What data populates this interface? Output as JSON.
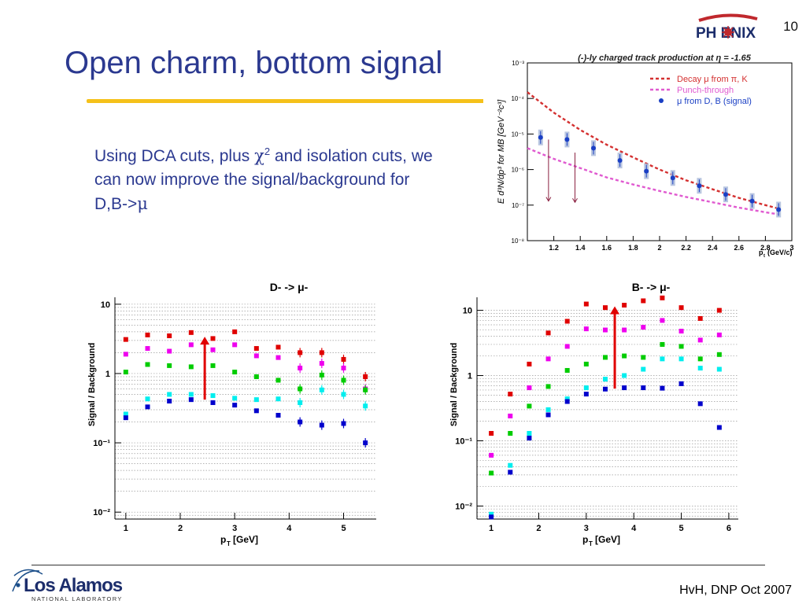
{
  "slide": {
    "title": "Open charm, bottom signal",
    "page_number": "10",
    "bullet_parts": [
      "Using DCA cuts, plus ",
      "χ",
      "2",
      " and isolation cuts, we can now improve the signal/background for D,B->",
      "μ"
    ],
    "footer": "HvH, DNP Oct 2007",
    "phenix_logo_text": "PH   ENIX",
    "lanl_logo": {
      "name": "Los Alamos",
      "sub": "NATIONAL LABORATORY"
    },
    "colors": {
      "title": "#2b3990",
      "rule": "#f5c11a"
    }
  },
  "chart_data": [
    {
      "id": "top",
      "type": "scatter",
      "title": "(-)-ly charged track production at η = -1.65",
      "ylabel": "E d³N/dp³ for MB [GeV⁻²c³]",
      "xlabel": "p",
      "xlabel_sub": "t",
      "xlabel_unit": "(GeV/c)",
      "xlim": [
        1.0,
        3.0
      ],
      "ylim_log10": [
        -8,
        -3
      ],
      "xticks": [
        1.2,
        1.4,
        1.6,
        1.8,
        2.0,
        2.2,
        2.4,
        2.6,
        2.8,
        3.0
      ],
      "xtick_labels": [
        "1.2",
        "1.4",
        "1.6",
        "1.8",
        "2",
        "2.2",
        "2.4",
        "2.6",
        "2.8",
        "3"
      ],
      "yticks_log10": [
        -8,
        -7,
        -6,
        -5,
        -4,
        -3
      ],
      "ytick_labels": [
        "10⁻⁸",
        "10⁻⁷",
        "10⁻⁶",
        "10⁻⁵",
        "10⁻⁴",
        "10⁻³"
      ],
      "legend_position": "top-right",
      "series": [
        {
          "name": "Decay μ from π, K",
          "kind": "curve",
          "color": "#d43030",
          "x": [
            1.0,
            1.2,
            1.4,
            1.6,
            1.8,
            2.0,
            2.2,
            2.4,
            2.6,
            2.8,
            2.9
          ],
          "y": [
            0.00015,
            4e-05,
            1.3e-05,
            5e-06,
            2.2e-06,
            1e-06,
            5e-07,
            2.8e-07,
            1.6e-07,
            1e-07,
            8e-08
          ]
        },
        {
          "name": "Punch-through",
          "kind": "curve",
          "color": "#e05ad0",
          "x": [
            1.0,
            1.2,
            1.4,
            1.6,
            1.8,
            2.0,
            2.2,
            2.4,
            2.6,
            2.8,
            2.9
          ],
          "y": [
            4e-06,
            2e-06,
            1.1e-06,
            6e-07,
            3.8e-07,
            2.5e-07,
            1.7e-07,
            1.2e-07,
            8.5e-08,
            6.3e-08,
            5.5e-08
          ]
        },
        {
          "name": "μ from D, B (signal)",
          "kind": "points",
          "color": "#1a3fc4",
          "x": [
            1.1,
            1.3,
            1.5,
            1.7,
            1.9,
            2.1,
            2.3,
            2.5,
            2.7,
            2.9
          ],
          "y": [
            8e-06,
            7e-06,
            4e-06,
            1.8e-06,
            9e-07,
            5.8e-07,
            3.5e-07,
            2e-07,
            1.3e-07,
            7.5e-08
          ]
        }
      ],
      "arrows": [
        {
          "x": 1.16,
          "y_from": 7e-06,
          "y_to": 1.3e-07
        },
        {
          "x": 1.36,
          "y_from": 3e-06,
          "y_to": 1.2e-07
        }
      ]
    },
    {
      "id": "d",
      "type": "scatter",
      "title": "D- -> μ-",
      "xlabel": "p",
      "xlabel_sub": "T",
      "xlabel_unit": "[GeV]",
      "ylabel": "Signal / Background",
      "xlim": [
        0.8,
        5.6
      ],
      "ylim_log10": [
        -2.1,
        1.1
      ],
      "xticks": [
        1,
        2,
        3,
        4,
        5
      ],
      "yticks_log10": [
        -2,
        -1,
        0,
        1
      ],
      "ytick_labels": [
        "10⁻²",
        "10⁻¹",
        "1",
        "10"
      ],
      "x": [
        1.0,
        1.4,
        1.8,
        2.2,
        2.6,
        3.0,
        3.4,
        3.8,
        4.2,
        4.6,
        5.0,
        5.4
      ],
      "series": [
        {
          "color": "#e00000",
          "values": [
            3.1,
            3.6,
            3.5,
            3.9,
            3.2,
            4.0,
            2.3,
            2.4,
            2.0,
            2.0,
            1.6,
            0.9
          ]
        },
        {
          "color": "#ee00ee",
          "values": [
            1.9,
            2.3,
            2.1,
            2.6,
            2.2,
            2.6,
            1.8,
            1.7,
            1.2,
            1.4,
            1.2,
            0.6
          ]
        },
        {
          "color": "#00cc00",
          "values": [
            1.05,
            1.35,
            1.3,
            1.25,
            1.3,
            1.05,
            0.9,
            0.8,
            0.6,
            0.95,
            0.8,
            0.58
          ]
        },
        {
          "color": "#00eeee",
          "values": [
            0.26,
            0.43,
            0.5,
            0.5,
            0.48,
            0.44,
            0.42,
            0.43,
            0.38,
            0.58,
            0.5,
            0.34
          ]
        },
        {
          "color": "#0000cc",
          "values": [
            0.23,
            0.33,
            0.4,
            0.42,
            0.38,
            0.35,
            0.29,
            0.25,
            0.2,
            0.18,
            0.19,
            0.1
          ]
        }
      ],
      "arrow": {
        "x": 2.45,
        "from": 0.42,
        "to": 3.4,
        "color": "#e00000"
      }
    },
    {
      "id": "b",
      "type": "scatter",
      "title": "B- -> μ-",
      "xlabel": "p",
      "xlabel_sub": "T",
      "xlabel_unit": "[GeV]",
      "ylabel": "Signal / Background",
      "xlim": [
        0.7,
        6.2
      ],
      "ylim_log10": [
        -2.2,
        1.2
      ],
      "xticks": [
        1,
        2,
        3,
        4,
        5,
        6
      ],
      "yticks_log10": [
        -2,
        -1,
        0,
        1
      ],
      "ytick_labels": [
        "10⁻²",
        "10⁻¹",
        "1",
        "10"
      ],
      "x": [
        1.0,
        1.4,
        1.8,
        2.2,
        2.6,
        3.0,
        3.4,
        3.8,
        4.2,
        4.6,
        5.0,
        5.4,
        5.8
      ],
      "series": [
        {
          "color": "#e00000",
          "values": [
            0.13,
            0.52,
            1.5,
            4.5,
            6.8,
            12.5,
            11.0,
            12.0,
            14.0,
            15.5,
            11.0,
            7.5,
            10.0
          ]
        },
        {
          "color": "#ee00ee",
          "values": [
            0.06,
            0.24,
            0.65,
            1.8,
            2.8,
            5.2,
            5.0,
            5.0,
            5.5,
            7.0,
            4.8,
            3.5,
            4.2
          ]
        },
        {
          "color": "#00cc00",
          "values": [
            0.032,
            0.13,
            0.34,
            0.68,
            1.2,
            1.5,
            1.9,
            2.0,
            1.9,
            3.0,
            2.8,
            1.8,
            2.1
          ]
        },
        {
          "color": "#00eeee",
          "values": [
            0.0075,
            0.042,
            0.13,
            0.3,
            0.44,
            0.65,
            0.88,
            1.0,
            1.25,
            1.8,
            1.8,
            1.3,
            1.25
          ]
        },
        {
          "color": "#0000cc",
          "values": [
            0.0068,
            0.033,
            0.11,
            0.25,
            0.4,
            0.52,
            0.62,
            0.65,
            0.65,
            0.64,
            0.75,
            0.37,
            0.16
          ]
        }
      ],
      "arrow": {
        "x": 3.6,
        "from": 0.63,
        "to": 11.5,
        "color": "#e00000"
      }
    }
  ]
}
